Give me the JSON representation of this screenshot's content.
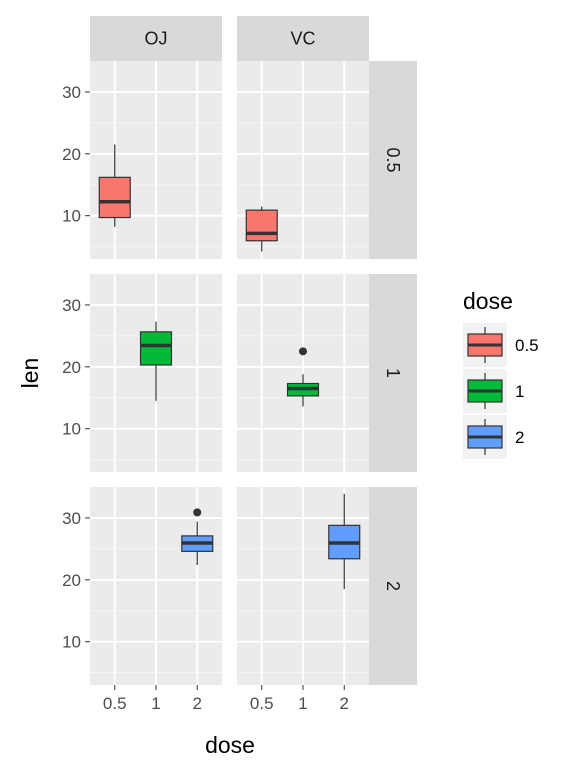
{
  "chart_data": {
    "type": "boxplot",
    "title": "",
    "xlabel": "dose",
    "ylabel": "len",
    "x_categories": [
      "0.5",
      "1",
      "2"
    ],
    "col_facets": [
      "OJ",
      "VC"
    ],
    "row_facets": [
      "0.5",
      "1",
      "2"
    ],
    "ylim": [
      3,
      35
    ],
    "yticks": [
      10,
      20,
      30
    ],
    "grid": true,
    "legend": {
      "title": "dose",
      "position": "right",
      "entries": [
        {
          "label": "0.5",
          "color": "#F8766D"
        },
        {
          "label": "1",
          "color": "#00BA38"
        },
        {
          "label": "2",
          "color": "#619CFF"
        }
      ]
    },
    "boxes": [
      {
        "col": "OJ",
        "row": "0.5",
        "x": "0.5",
        "min": 8.2,
        "q1": 9.7,
        "median": 12.25,
        "q3": 16.2,
        "max": 21.5,
        "outliers": [],
        "color": "#F8766D"
      },
      {
        "col": "VC",
        "row": "0.5",
        "x": "0.5",
        "min": 4.2,
        "q1": 5.95,
        "median": 7.15,
        "q3": 10.9,
        "max": 11.5,
        "outliers": [],
        "color": "#F8766D"
      },
      {
        "col": "OJ",
        "row": "1",
        "x": "1",
        "min": 14.5,
        "q1": 20.3,
        "median": 23.45,
        "q3": 25.65,
        "max": 27.3,
        "outliers": [],
        "color": "#00BA38"
      },
      {
        "col": "VC",
        "row": "1",
        "x": "1",
        "min": 13.6,
        "q1": 15.3,
        "median": 16.5,
        "q3": 17.3,
        "max": 18.8,
        "outliers": [
          22.5
        ],
        "color": "#00BA38"
      },
      {
        "col": "OJ",
        "row": "2",
        "x": "2",
        "min": 22.4,
        "q1": 24.6,
        "median": 25.95,
        "q3": 27.1,
        "max": 29.4,
        "outliers": [
          30.9
        ],
        "color": "#619CFF"
      },
      {
        "col": "VC",
        "row": "2",
        "x": "2",
        "min": 18.5,
        "q1": 23.4,
        "median": 25.95,
        "q3": 28.8,
        "max": 33.9,
        "outliers": [],
        "color": "#619CFF"
      }
    ]
  }
}
